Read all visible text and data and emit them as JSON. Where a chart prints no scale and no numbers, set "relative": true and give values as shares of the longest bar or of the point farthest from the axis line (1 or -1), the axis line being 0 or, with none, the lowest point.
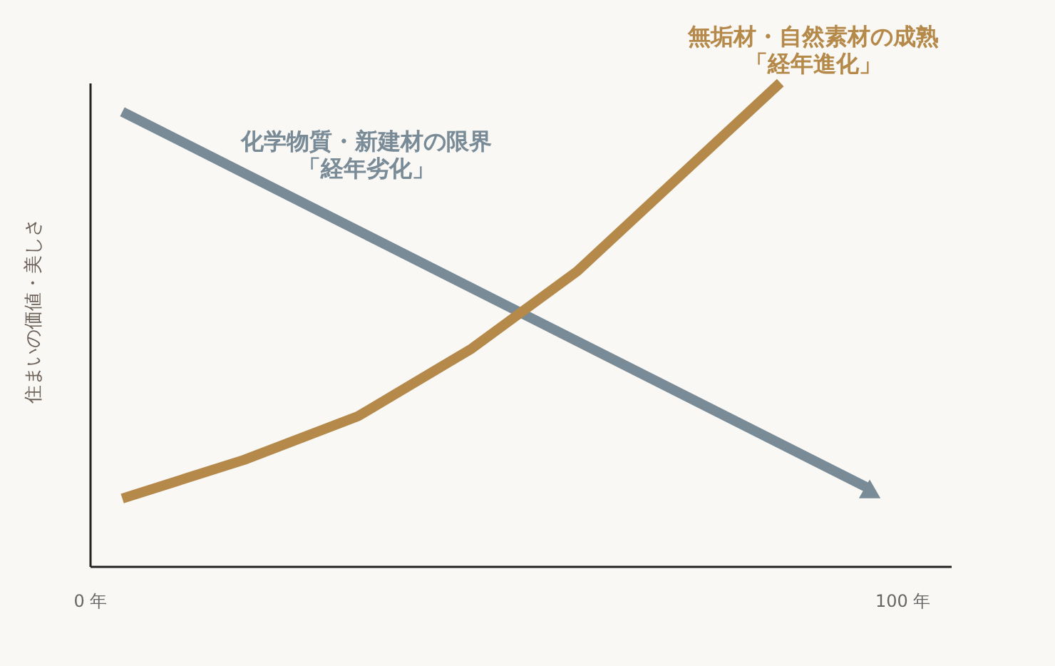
{
  "chart_data": {
    "type": "line",
    "ylabel": "住まいの価値・美しさ",
    "xlim": [
      0,
      106
    ],
    "xticks": [
      {
        "value": 0,
        "label": "0 年"
      },
      {
        "value": 100,
        "label": "100 年"
      }
    ],
    "relative": true,
    "series": [
      {
        "name": "化学物質・新建材の限界「経年劣化」",
        "color": "#7a8b98",
        "x": [
          4,
          96
        ],
        "values": [
          0.94,
          0.16
        ]
      },
      {
        "name": "無垢材・自然素材の成熟「経年進化」",
        "color": "#b5894a",
        "x": [
          4,
          19,
          33,
          47,
          60,
          85
        ],
        "values": [
          0.14,
          0.22,
          0.31,
          0.45,
          0.61,
          1
        ]
      }
    ]
  }
}
